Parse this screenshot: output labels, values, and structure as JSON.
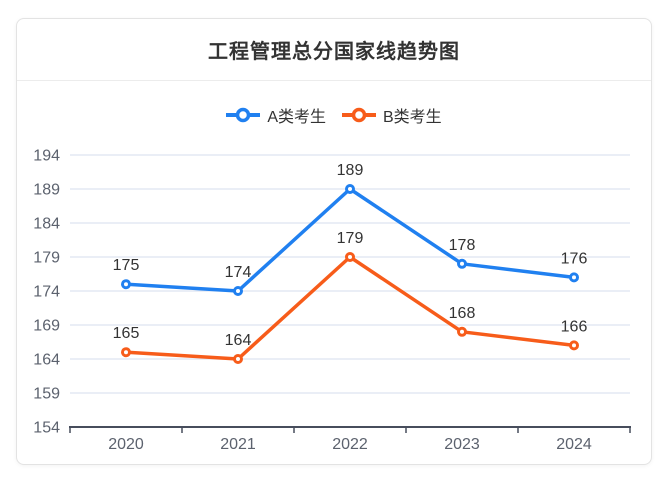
{
  "card": {
    "title": "工程管理总分国家线趋势图"
  },
  "chart_data": {
    "type": "line",
    "title": "工程管理总分国家线趋势图",
    "categories": [
      "2020",
      "2021",
      "2022",
      "2023",
      "2024"
    ],
    "series": [
      {
        "name": "A类考生",
        "color": "#2080f0",
        "values": [
          175,
          174,
          189,
          178,
          176
        ]
      },
      {
        "name": "B类考生",
        "color": "#f75c1a",
        "values": [
          165,
          164,
          179,
          168,
          166
        ]
      }
    ],
    "xlabel": "",
    "ylabel": "",
    "ylim": [
      154,
      194
    ],
    "y_ticks": [
      154,
      159,
      164,
      169,
      174,
      179,
      184,
      189,
      194
    ],
    "grid": true,
    "data_labels": true,
    "legend_position": "top",
    "marker": "hollow-circle",
    "colors": {
      "gridline": "#e4e9f4",
      "axis": "#474d5c",
      "tick_label": "#5c626e",
      "data_label": "#333333",
      "title": "#333333"
    }
  }
}
